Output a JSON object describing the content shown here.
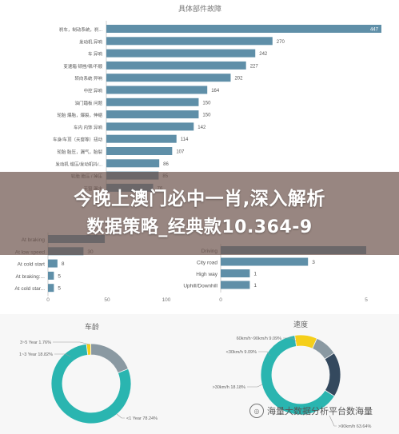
{
  "banner": {
    "line1": "今晚上澳门必中一肖,深入解析",
    "line2": "数据策略_经典款10.364-9"
  },
  "watermark": {
    "text": "海量大数据分析平台数海量"
  },
  "colors": {
    "bar": "#5f8fa8",
    "teal": "#2ab5b0",
    "dark": "#34495e",
    "yellow": "#f5cf1a",
    "grey": "#8a99a2"
  },
  "chart_data": [
    {
      "type": "bar",
      "orientation": "horizontal",
      "title": "具体部件故障",
      "categories": [
        "刹车，制动系统，刹...",
        "发动机 异响",
        "车 异响",
        "变速箱 顿挫/顿/不顺",
        "转向系统 异响",
        "中控 异响",
        "油门踏板 问题",
        "轮胎 爆胎，爆裂，伸缩",
        "车内 内饰 异响",
        "车身/车顶（天窗等）扭动",
        "轮胎 胎压，漏气，胎裂",
        "发动机 增压/发动机抖/...",
        "轮胎 胎压 / 掉压",
        "天窗 漏水"
      ],
      "category_labels_visible": [
        "刹车，制动系统，刹...",
        "发动机 异响",
        "车 异响",
        "变速箱 顿挫/顿/不顺",
        "转向系统 异响",
        "中控 异响",
        "油门踏板 问题",
        "轮胎 爆胎，爆裂，伸缩",
        "车内 内饰 异响",
        "车身/车顶（天窗等）扭动",
        "轮胎 胎压，漏气，胎裂",
        "发动机 增压/发动机抖/...",
        "轮胎 胎压 / 掉压",
        "天窗 漏水"
      ],
      "values": [
        447,
        270,
        242,
        227,
        202,
        164,
        150,
        150,
        142,
        114,
        107,
        86,
        85,
        76
      ],
      "data_labels": [
        "447",
        "270",
        "242",
        "227",
        "202",
        "164",
        "150",
        "150",
        "142",
        "114",
        "107",
        "86",
        "85",
        "76"
      ],
      "xlim": [
        0,
        460
      ]
    },
    {
      "type": "bar",
      "orientation": "horizontal",
      "categories": [
        "At braking",
        "At low speed",
        "At cold start",
        "At braking:...",
        "At cold star..."
      ],
      "values": [
        48,
        30,
        8,
        5,
        5
      ],
      "data_labels": [
        "",
        "30",
        "8",
        "5",
        "5"
      ],
      "x_ticks": [
        "0",
        "50",
        "100"
      ],
      "xlim": [
        0,
        100
      ]
    },
    {
      "type": "bar",
      "orientation": "horizontal",
      "categories": [
        "Driving",
        "City road",
        "High way",
        "Uphill/Downhill"
      ],
      "values": [
        5,
        3,
        1,
        1
      ],
      "data_labels": [
        "",
        "3",
        "1",
        "1"
      ],
      "x_ticks": [
        "0",
        "5"
      ],
      "xlim": [
        0,
        5
      ]
    },
    {
      "type": "pie",
      "title": "车龄",
      "labels": [
        "3-5 Year",
        "1-3 Year",
        "<1 Year"
      ],
      "values": [
        1.76,
        18.82,
        78.24
      ],
      "data_labels": [
        "3~5 Year 1.76%",
        "1~3 Year 18.82%",
        "<1 Year 78.24%"
      ]
    },
    {
      "type": "pie",
      "title": "速度",
      "labels": [
        "60km/h-90km/h",
        "<30km/h",
        "30km/h-60km/h",
        ">90km/h"
      ],
      "values": [
        9.09,
        9.09,
        18.18,
        63.64
      ],
      "data_labels": [
        "60km/h~90km/h 9.09%",
        "<30km/h 9.09%",
        ">30km/h 18.18%",
        ">90km/h 63.64%"
      ]
    }
  ]
}
